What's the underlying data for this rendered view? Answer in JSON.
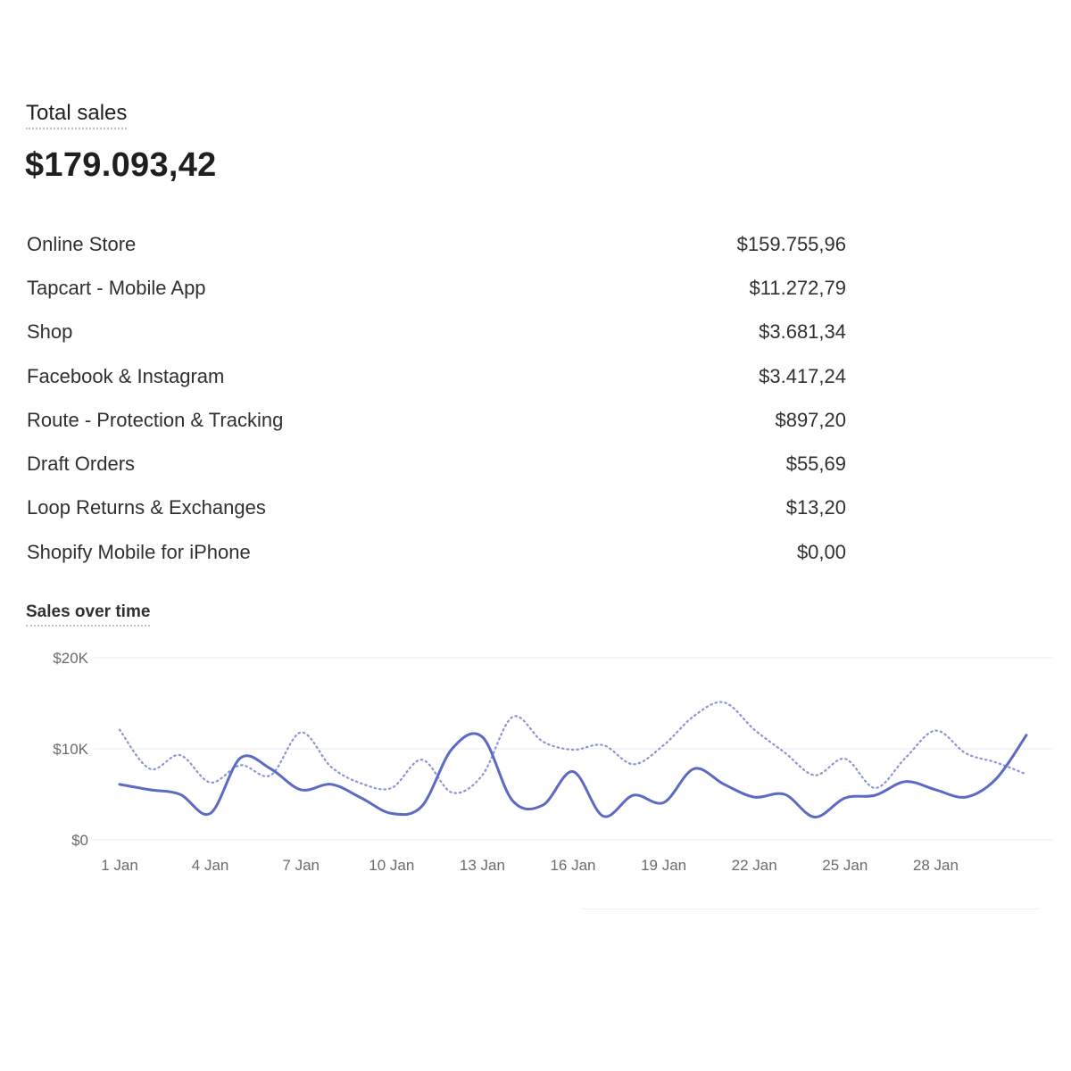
{
  "report": {
    "title": "Total sales",
    "total": "$179.093,42"
  },
  "breakdown": [
    {
      "label": "Online Store",
      "amount": "$159.755,96"
    },
    {
      "label": "Tapcart - Mobile App",
      "amount": "$11.272,79"
    },
    {
      "label": "Shop",
      "amount": "$3.681,34"
    },
    {
      "label": "Facebook & Instagram",
      "amount": "$3.417,24"
    },
    {
      "label": "Route - Protection & Tracking",
      "amount": "$897,20"
    },
    {
      "label": "Draft Orders",
      "amount": "$55,69"
    },
    {
      "label": "Loop Returns & Exchanges",
      "amount": "$13,20"
    },
    {
      "label": "Shopify Mobile for iPhone",
      "amount": "$0,00"
    }
  ],
  "chart_data": {
    "type": "line",
    "title": "Sales over time",
    "xlabel": "",
    "ylabel": "",
    "ylim": [
      0,
      20000
    ],
    "yticks": [
      0,
      10000,
      20000
    ],
    "ytick_labels": [
      "$0",
      "$10K",
      "$20K"
    ],
    "x": [
      1,
      2,
      3,
      4,
      5,
      6,
      7,
      8,
      9,
      10,
      11,
      12,
      13,
      14,
      15,
      16,
      17,
      18,
      19,
      20,
      21,
      22,
      23,
      24,
      25,
      26,
      27,
      28,
      29,
      30,
      31
    ],
    "xticks": [
      1,
      4,
      7,
      10,
      13,
      16,
      19,
      22,
      25,
      28
    ],
    "xtick_labels": [
      "1 Jan",
      "4 Jan",
      "7 Jan",
      "10 Jan",
      "13 Jan",
      "16 Jan",
      "19 Jan",
      "22 Jan",
      "25 Jan",
      "28 Jan"
    ],
    "grid": true,
    "colors": {
      "current": "#5c6ac4",
      "previous": "#8a94d6",
      "grid": "#ebebeb",
      "axis_text": "#6b6b6b"
    },
    "series": [
      {
        "style": "solid",
        "values": [
          6100,
          5500,
          5000,
          2900,
          9000,
          7800,
          5500,
          6100,
          4600,
          2900,
          3700,
          10000,
          11300,
          4300,
          3800,
          7500,
          2600,
          4900,
          4100,
          7800,
          6100,
          4700,
          5000,
          2500,
          4600,
          4900,
          6400,
          5500,
          4700,
          6700,
          11500
        ]
      },
      {
        "style": "dotted",
        "values": [
          12100,
          7800,
          9300,
          6300,
          8200,
          7100,
          11800,
          8000,
          6200,
          5700,
          8800,
          5200,
          7100,
          13500,
          10800,
          9900,
          10400,
          8300,
          10400,
          13600,
          15100,
          12100,
          9600,
          7100,
          8900,
          5700,
          9000,
          12000,
          9500,
          8500,
          7200
        ]
      }
    ]
  }
}
